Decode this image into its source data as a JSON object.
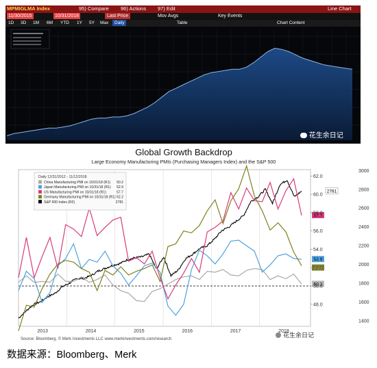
{
  "bloomberg": {
    "ticker": "MPMIGLMA Index",
    "toolbar": [
      "95) Compare",
      "96) Actions",
      "97) Edit"
    ],
    "window_title": "Line Chart",
    "date_start": "11/30/2015",
    "date_end": "10/31/2018",
    "price_field": "Last Price",
    "overlay_options": [
      "Mov Avgs",
      "Key Events"
    ],
    "periods": [
      "1D",
      "3D",
      "1M",
      "6M",
      "YTD",
      "1Y",
      "5Y",
      "Max"
    ],
    "frequency": "Daily",
    "table_label": "Table",
    "chart_content_label": "Chart Content",
    "series": [
      0.04,
      0.06,
      0.07,
      0.08,
      0.09,
      0.1,
      0.11,
      0.11,
      0.12,
      0.13,
      0.15,
      0.17,
      0.19,
      0.2,
      0.2,
      0.21,
      0.21,
      0.22,
      0.24,
      0.27,
      0.3,
      0.34,
      0.39,
      0.44,
      0.47,
      0.5,
      0.53,
      0.56,
      0.59,
      0.61,
      0.62,
      0.63,
      0.64,
      0.64,
      0.66,
      0.7,
      0.75,
      0.8,
      0.83,
      0.82,
      0.8,
      0.77,
      0.74,
      0.72,
      0.7,
      0.68,
      0.67,
      0.66,
      0.65,
      0.64
    ],
    "watermark": "花生余日记"
  },
  "chart_data": {
    "type": "line",
    "title": "Global Growth Backdrop",
    "subtitle": "Large Economy Manufacturing PMIs (Purchasing Managers Index) and the S&P 500",
    "legend_header": "Daily 12/31/2012 - 11/12/2018",
    "series": [
      {
        "name": "China Manufacturing PMI on 10/31/18 (R1)",
        "last": "50.2",
        "color": "#a8a8a8",
        "values": [
          50.4,
          51.1,
          50.4,
          50.5,
          50.4,
          51.3,
          50.5,
          50.5,
          51.0,
          50.4,
          50.7,
          51.2,
          50.1,
          49.5,
          49.2,
          48.4,
          48.3,
          49.4,
          49.7,
          50.2,
          50.7,
          51.0,
          51.1,
          50.7,
          51.6,
          51.5,
          51.8,
          51.2,
          51.1,
          51.7,
          51.9,
          51.8,
          50.7,
          51.1,
          50.8,
          51.3,
          50.2
        ]
      },
      {
        "name": "Japan Manufacturing PMI on 10/31/18 (R1)",
        "last": "52.9",
        "color": "#4fa0dc",
        "values": [
          49.5,
          51.6,
          50.8,
          48.2,
          49.3,
          52.2,
          53.0,
          54.6,
          51.9,
          52.9,
          52.6,
          53.8,
          52.2,
          51.4,
          50.1,
          51.1,
          52.2,
          52.5,
          51.5,
          47.8,
          46.8,
          48.0,
          51.8,
          53.9,
          53.3,
          52.4,
          53.5,
          54.9,
          55.0,
          54.4,
          53.8,
          51.5,
          52.3,
          53.3,
          53.5,
          53.0,
          52.9
        ]
      },
      {
        "name": "US Manufacturing PMI on 10/31/18 (R1)",
        "last": "57.7",
        "color": "#d83a7b",
        "values": [
          50.9,
          55.3,
          50.9,
          53.2,
          55.3,
          51.9,
          56.7,
          56.2,
          55.4,
          58.5,
          55.5,
          56.4,
          57.2,
          57.5,
          52.7,
          53.1,
          52.4,
          53.8,
          50.9,
          48.6,
          50.1,
          51.4,
          53.0,
          51.5,
          55.9,
          56.4,
          57.1,
          60.2,
          58.4,
          60.7,
          59.3,
          59.2,
          61.3,
          58.4,
          60.4,
          61.7,
          57.7
        ]
      },
      {
        "name": "Germany Manufacturing PMI on 10/31/18 (R1)",
        "last": "52.2",
        "color": "#7f7f1e",
        "values": [
          45.1,
          47.9,
          47.7,
          49.7,
          51.3,
          52.4,
          52.8,
          52.6,
          51.9,
          51.5,
          49.5,
          51.7,
          51.2,
          52.1,
          51.2,
          51.6,
          51.9,
          52.3,
          50.5,
          54.3,
          54.6,
          56.0,
          55.8,
          56.6,
          58.2,
          59.4,
          56.8,
          59.3,
          60.6,
          63.1,
          59.8,
          58.2,
          56.1,
          56.9,
          55.9,
          53.7,
          52.2
        ]
      },
      {
        "name": "S&P 500 Index (R2)",
        "last": "2781",
        "color": "#000000",
        "values": [
          1426,
          1500,
          1570,
          1600,
          1655,
          1690,
          1760,
          1800,
          1848,
          1850,
          1880,
          1930,
          1960,
          1990,
          2010,
          2050,
          2070,
          2080,
          2110,
          1950,
          2080,
          1880,
          1940,
          2060,
          2110,
          2170,
          2200,
          2270,
          2360,
          2400,
          2460,
          2520,
          2670,
          2720,
          2800,
          2650,
          2850,
          2900,
          2720,
          2781
        ]
      }
    ],
    "x_tick_labels": [
      "2013",
      "2014",
      "2015",
      "2016",
      "2017",
      "2018"
    ],
    "pmi_axis_ticks": [
      48,
      50,
      52,
      54,
      56,
      58,
      60,
      62
    ],
    "spx_axis_ticks": [
      1400,
      1600,
      1800,
      2000,
      2200,
      2400,
      2600,
      2800,
      3000
    ],
    "ylim_pmi": [
      45.6,
      62.7
    ],
    "ylim_spx": [
      1340,
      3010
    ],
    "reference_line": 50,
    "source": "Source: Bloomberg, © Merk Investments LLC www.merkinvestments.com/research",
    "watermark": "花生余日记"
  },
  "caption": "数据来源：Bloomberg、Merk"
}
